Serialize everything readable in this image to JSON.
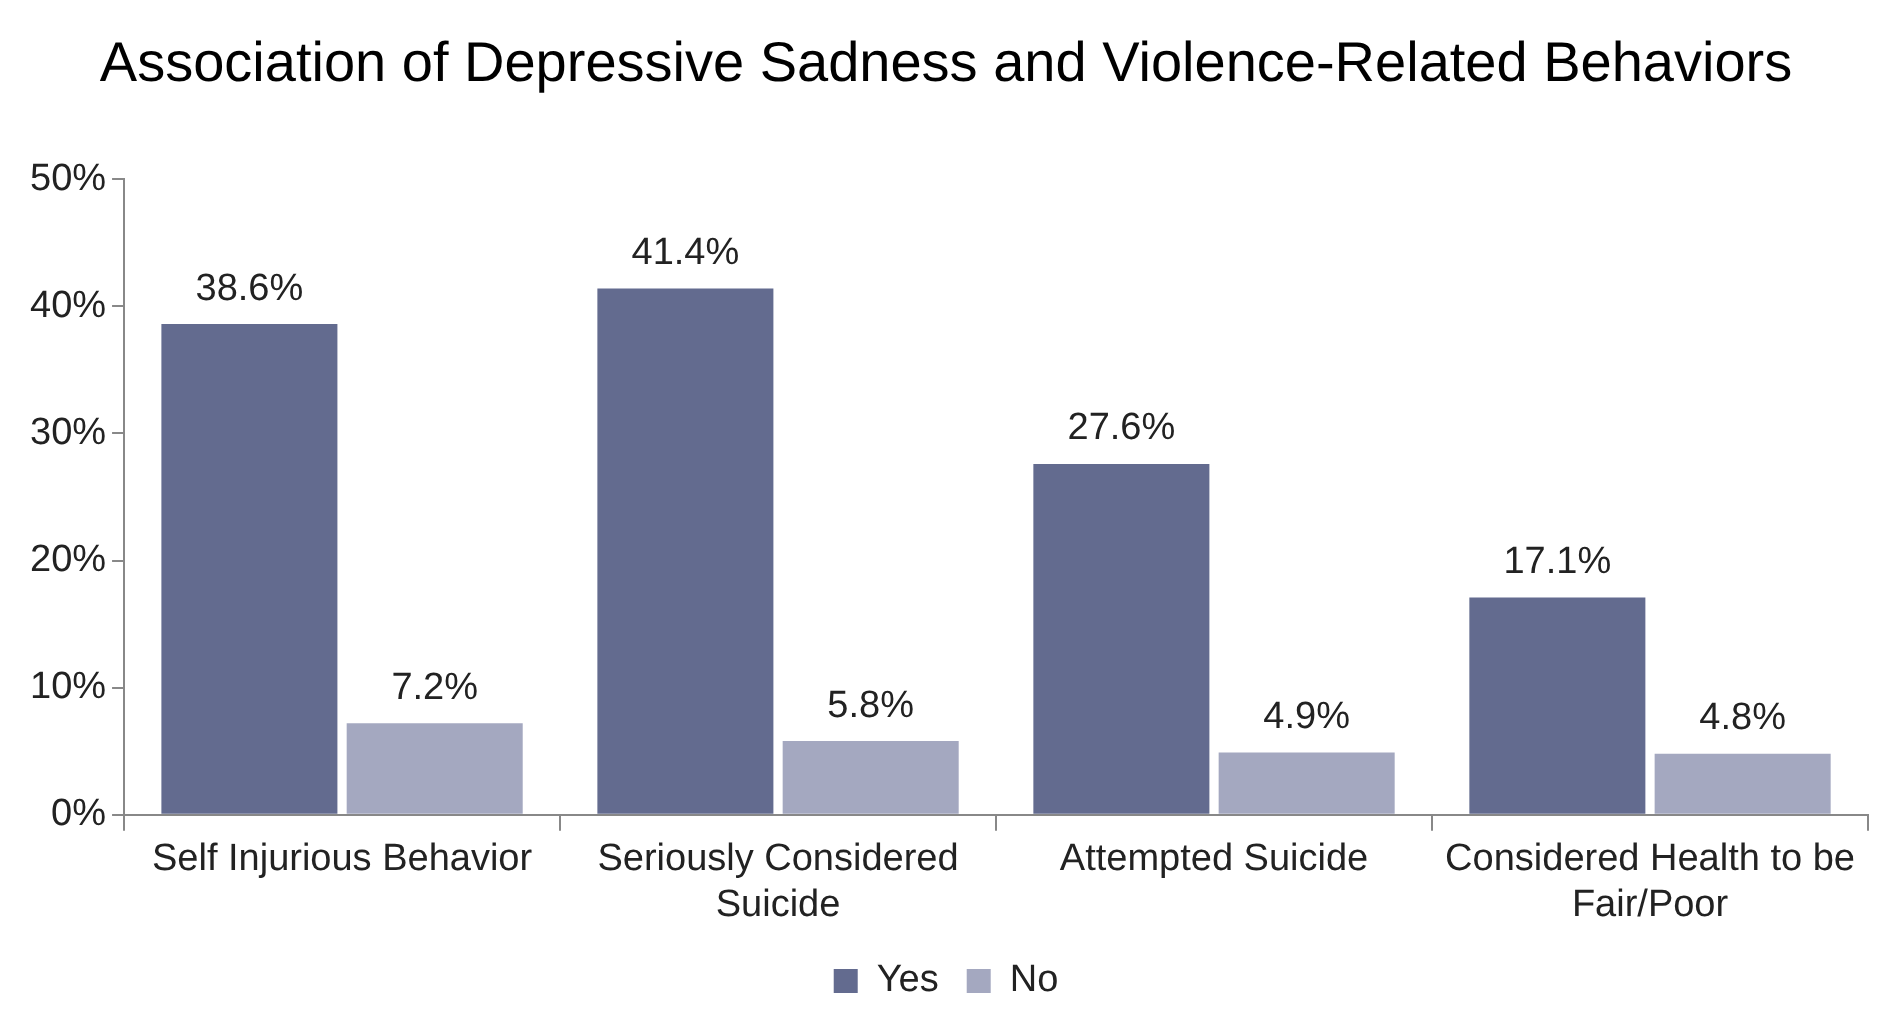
{
  "chart_data": {
    "type": "bar",
    "title": "Association of Depressive Sadness and Violence-Related Behaviors",
    "categories": [
      "Self Injurious Behavior",
      "Seriously Considered Suicide",
      "Attempted Suicide",
      "Considered Health to be Fair/Poor"
    ],
    "series": [
      {
        "name": "Yes",
        "color": "#636b8f",
        "values": [
          38.6,
          41.4,
          27.6,
          17.1
        ]
      },
      {
        "name": "No",
        "color": "#a4a8c0",
        "values": [
          7.2,
          5.8,
          4.9,
          4.8
        ]
      }
    ],
    "ylim": [
      0,
      50
    ],
    "yticks": [
      {
        "value": 0,
        "label": "0%"
      },
      {
        "value": 10,
        "label": "10%"
      },
      {
        "value": 20,
        "label": "20%"
      },
      {
        "value": 30,
        "label": "30%"
      },
      {
        "value": 40,
        "label": "40%"
      },
      {
        "value": 50,
        "label": "50%"
      }
    ],
    "value_labels": [
      [
        "38.6%",
        "41.4%",
        "27.6%",
        "17.1%"
      ],
      [
        "7.2%",
        "5.8%",
        "4.9%",
        "4.8%"
      ]
    ],
    "grid": false,
    "legend": "bottom"
  }
}
